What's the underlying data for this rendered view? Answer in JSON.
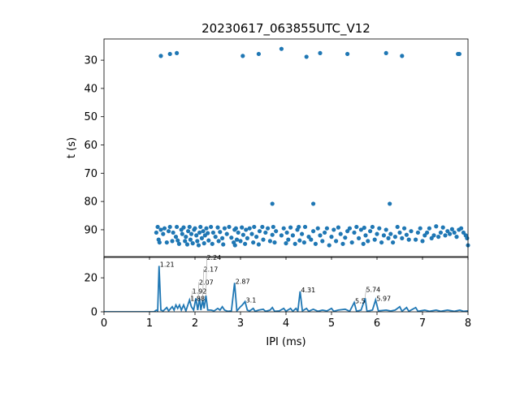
{
  "chart_data": [
    {
      "type": "scatter",
      "title": "20230617_063855UTC_V12",
      "xlabel": "",
      "ylabel": "t (s)",
      "xlim": [
        0,
        8
      ],
      "ylim": [
        99.5,
        22.5
      ],
      "y_inverted": true,
      "yticks": [
        30,
        40,
        50,
        60,
        70,
        80,
        90
      ],
      "color": "#1f77b4",
      "points": [
        [
          1.25,
          28.5
        ],
        [
          1.45,
          27.8
        ],
        [
          1.6,
          27.5
        ],
        [
          3.05,
          28.5
        ],
        [
          3.4,
          27.8
        ],
        [
          3.9,
          26
        ],
        [
          4.45,
          28.8
        ],
        [
          4.75,
          27.5
        ],
        [
          5.35,
          27.8
        ],
        [
          6.2,
          27.5
        ],
        [
          6.55,
          28.5
        ],
        [
          7.78,
          27.8
        ],
        [
          7.81,
          27.8
        ],
        [
          3.7,
          80.8
        ],
        [
          4.6,
          80.8
        ],
        [
          6.28,
          80.8
        ],
        [
          1.15,
          91
        ],
        [
          1.18,
          89
        ],
        [
          1.2,
          93.5
        ],
        [
          1.22,
          94.5
        ],
        [
          1.25,
          90
        ],
        [
          1.3,
          91.5
        ],
        [
          1.33,
          89.5
        ],
        [
          1.38,
          94.5
        ],
        [
          1.42,
          90.5
        ],
        [
          1.45,
          89
        ],
        [
          1.5,
          94
        ],
        [
          1.52,
          91
        ],
        [
          1.58,
          92.5
        ],
        [
          1.6,
          89
        ],
        [
          1.62,
          93.8
        ],
        [
          1.65,
          95
        ],
        [
          1.7,
          90
        ],
        [
          1.72,
          91.5
        ],
        [
          1.75,
          89.2
        ],
        [
          1.78,
          94
        ],
        [
          1.8,
          92.5
        ],
        [
          1.83,
          95.2
        ],
        [
          1.85,
          90.5
        ],
        [
          1.88,
          89
        ],
        [
          1.9,
          93.5
        ],
        [
          1.92,
          91.5
        ],
        [
          1.95,
          94.8
        ],
        [
          1.98,
          90
        ],
        [
          2.0,
          89.5
        ],
        [
          2.03,
          92
        ],
        [
          2.05,
          94
        ],
        [
          2.08,
          95.5
        ],
        [
          2.1,
          91
        ],
        [
          2.12,
          89
        ],
        [
          2.15,
          93
        ],
        [
          2.18,
          90.5
        ],
        [
          2.2,
          94.8
        ],
        [
          2.22,
          92
        ],
        [
          2.25,
          89.5
        ],
        [
          2.28,
          91.2
        ],
        [
          2.3,
          93.8
        ],
        [
          2.35,
          89
        ],
        [
          2.38,
          95
        ],
        [
          2.4,
          91
        ],
        [
          2.45,
          92.5
        ],
        [
          2.5,
          89.2
        ],
        [
          2.52,
          94
        ],
        [
          2.55,
          90.8
        ],
        [
          2.6,
          93
        ],
        [
          2.62,
          95.2
        ],
        [
          2.65,
          89.5
        ],
        [
          2.7,
          91.5
        ],
        [
          2.75,
          89
        ],
        [
          2.8,
          92.8
        ],
        [
          2.85,
          94.5
        ],
        [
          2.87,
          90
        ],
        [
          2.88,
          95.5
        ],
        [
          2.9,
          89.5
        ],
        [
          2.92,
          93.5
        ],
        [
          2.95,
          91
        ],
        [
          3.0,
          94
        ],
        [
          3.03,
          89.2
        ],
        [
          3.06,
          91.8
        ],
        [
          3.1,
          95
        ],
        [
          3.12,
          90
        ],
        [
          3.15,
          93
        ],
        [
          3.2,
          89.5
        ],
        [
          3.25,
          91.5
        ],
        [
          3.28,
          94.5
        ],
        [
          3.3,
          89
        ],
        [
          3.35,
          92.5
        ],
        [
          3.4,
          95.2
        ],
        [
          3.42,
          90.5
        ],
        [
          3.48,
          89
        ],
        [
          3.5,
          93.5
        ],
        [
          3.55,
          91
        ],
        [
          3.6,
          89.5
        ],
        [
          3.65,
          94
        ],
        [
          3.7,
          91.8
        ],
        [
          3.72,
          89
        ],
        [
          3.75,
          94.5
        ],
        [
          3.78,
          90.5
        ],
        [
          3.9,
          92
        ],
        [
          3.95,
          89.5
        ],
        [
          4.0,
          94.8
        ],
        [
          4.02,
          91
        ],
        [
          4.05,
          93.5
        ],
        [
          4.1,
          89.2
        ],
        [
          4.15,
          92
        ],
        [
          4.2,
          95
        ],
        [
          4.25,
          90
        ],
        [
          4.28,
          89
        ],
        [
          4.3,
          93.8
        ],
        [
          4.35,
          91.5
        ],
        [
          4.4,
          94.5
        ],
        [
          4.42,
          89
        ],
        [
          4.5,
          92.5
        ],
        [
          4.55,
          93.5
        ],
        [
          4.6,
          90.5
        ],
        [
          4.65,
          95
        ],
        [
          4.7,
          89.5
        ],
        [
          4.75,
          92
        ],
        [
          4.8,
          94
        ],
        [
          4.85,
          91
        ],
        [
          4.9,
          89.5
        ],
        [
          4.95,
          95.5
        ],
        [
          5.0,
          92.5
        ],
        [
          5.05,
          90
        ],
        [
          5.1,
          94
        ],
        [
          5.15,
          89.2
        ],
        [
          5.2,
          91.5
        ],
        [
          5.25,
          95
        ],
        [
          5.3,
          92.8
        ],
        [
          5.35,
          90.5
        ],
        [
          5.4,
          89.5
        ],
        [
          5.45,
          94.5
        ],
        [
          5.5,
          91
        ],
        [
          5.55,
          89
        ],
        [
          5.6,
          93
        ],
        [
          5.65,
          90
        ],
        [
          5.7,
          95
        ],
        [
          5.72,
          89.3
        ],
        [
          5.75,
          92
        ],
        [
          5.8,
          94
        ],
        [
          5.85,
          90.5
        ],
        [
          5.9,
          89
        ],
        [
          5.95,
          93.5
        ],
        [
          6.0,
          91.5
        ],
        [
          6.05,
          89.5
        ],
        [
          6.1,
          94.5
        ],
        [
          6.15,
          92
        ],
        [
          6.2,
          90
        ],
        [
          6.25,
          93
        ],
        [
          6.3,
          91.5
        ],
        [
          6.35,
          94.5
        ],
        [
          6.4,
          92.5
        ],
        [
          6.45,
          89
        ],
        [
          6.5,
          91
        ],
        [
          6.55,
          93
        ],
        [
          6.6,
          89.5
        ],
        [
          6.65,
          91.8
        ],
        [
          6.7,
          93.5
        ],
        [
          6.75,
          90.5
        ],
        [
          6.85,
          93.5
        ],
        [
          6.9,
          91
        ],
        [
          6.95,
          89.5
        ],
        [
          7.0,
          94
        ],
        [
          7.05,
          92
        ],
        [
          7.1,
          91
        ],
        [
          7.15,
          89.5
        ],
        [
          7.2,
          93
        ],
        [
          7.25,
          92
        ],
        [
          7.3,
          88.8
        ],
        [
          7.35,
          92.5
        ],
        [
          7.4,
          91
        ],
        [
          7.45,
          89.2
        ],
        [
          7.5,
          92
        ],
        [
          7.55,
          90.5
        ],
        [
          7.6,
          91.5
        ],
        [
          7.65,
          89.8
        ],
        [
          7.7,
          91
        ],
        [
          7.75,
          92.5
        ],
        [
          7.8,
          90
        ],
        [
          7.85,
          89.5
        ],
        [
          7.9,
          91
        ],
        [
          7.95,
          92
        ],
        [
          7.98,
          93
        ],
        [
          8.0,
          95.5
        ]
      ]
    },
    {
      "type": "line",
      "xlabel": "IPI (ms)",
      "ylabel": "",
      "xlim": [
        0,
        8
      ],
      "ylim": [
        0,
        32
      ],
      "xticks": [
        0,
        1,
        2,
        3,
        4,
        5,
        6,
        7,
        8
      ],
      "yticks": [
        0,
        20
      ],
      "color": "#1f77b4",
      "points": [
        [
          0,
          0
        ],
        [
          1.1,
          0
        ],
        [
          1.15,
          1
        ],
        [
          1.18,
          0.5
        ],
        [
          1.21,
          27
        ],
        [
          1.25,
          1
        ],
        [
          1.3,
          0.5
        ],
        [
          1.38,
          2.5
        ],
        [
          1.42,
          0.5
        ],
        [
          1.5,
          3
        ],
        [
          1.54,
          1
        ],
        [
          1.58,
          4
        ],
        [
          1.62,
          2
        ],
        [
          1.66,
          4
        ],
        [
          1.7,
          1
        ],
        [
          1.75,
          4
        ],
        [
          1.8,
          0.5
        ],
        [
          1.88,
          7
        ],
        [
          1.92,
          3
        ],
        [
          1.97,
          1
        ],
        [
          2.02,
          8
        ],
        [
          2.06,
          1
        ],
        [
          2.1,
          8
        ],
        [
          2.13,
          1
        ],
        [
          2.17,
          7
        ],
        [
          2.2,
          2
        ],
        [
          2.24,
          9.5
        ],
        [
          2.28,
          1
        ],
        [
          2.35,
          1
        ],
        [
          2.42,
          0.5
        ],
        [
          2.5,
          2
        ],
        [
          2.55,
          1
        ],
        [
          2.6,
          3
        ],
        [
          2.65,
          1
        ],
        [
          2.72,
          0.3
        ],
        [
          2.8,
          0.5
        ],
        [
          2.87,
          17
        ],
        [
          2.92,
          0.5
        ],
        [
          3.0,
          3
        ],
        [
          3.04,
          4
        ],
        [
          3.1,
          6
        ],
        [
          3.15,
          1
        ],
        [
          3.2,
          0.5
        ],
        [
          3.28,
          2
        ],
        [
          3.32,
          0.3
        ],
        [
          3.4,
          1
        ],
        [
          3.5,
          1.5
        ],
        [
          3.55,
          0.3
        ],
        [
          3.65,
          1
        ],
        [
          3.7,
          2.5
        ],
        [
          3.75,
          0.3
        ],
        [
          3.85,
          0.5
        ],
        [
          3.95,
          2
        ],
        [
          4.0,
          0.3
        ],
        [
          4.1,
          2
        ],
        [
          4.15,
          0.3
        ],
        [
          4.22,
          2
        ],
        [
          4.26,
          0.3
        ],
        [
          4.31,
          12
        ],
        [
          4.36,
          0.5
        ],
        [
          4.45,
          2
        ],
        [
          4.5,
          0.3
        ],
        [
          4.6,
          1.5
        ],
        [
          4.7,
          0.3
        ],
        [
          4.8,
          1
        ],
        [
          4.9,
          0.5
        ],
        [
          5.0,
          2
        ],
        [
          5.05,
          0.3
        ],
        [
          5.15,
          1
        ],
        [
          5.3,
          1.5
        ],
        [
          5.4,
          0.3
        ],
        [
          5.5,
          5.5
        ],
        [
          5.55,
          0.3
        ],
        [
          5.65,
          1
        ],
        [
          5.74,
          8
        ],
        [
          5.78,
          0.3
        ],
        [
          5.9,
          1
        ],
        [
          5.97,
          7
        ],
        [
          6.03,
          0.5
        ],
        [
          6.2,
          1
        ],
        [
          6.3,
          0.5
        ],
        [
          6.4,
          1
        ],
        [
          6.5,
          3
        ],
        [
          6.55,
          0.3
        ],
        [
          6.65,
          2.5
        ],
        [
          6.7,
          0.3
        ],
        [
          6.85,
          2.5
        ],
        [
          6.9,
          0.3
        ],
        [
          7.05,
          1
        ],
        [
          7.15,
          0.3
        ],
        [
          7.3,
          1
        ],
        [
          7.4,
          0.3
        ],
        [
          7.55,
          1
        ],
        [
          7.7,
          0.3
        ],
        [
          7.82,
          1
        ],
        [
          7.9,
          0.3
        ],
        [
          8,
          0.5
        ]
      ],
      "annotations": [
        {
          "x": 1.21,
          "y": 27,
          "text": "1.21"
        },
        {
          "x": 1.88,
          "y": 7,
          "text": "1.88"
        },
        {
          "x": 1.92,
          "y": 7,
          "text": "1.92"
        },
        {
          "x": 2.07,
          "y": 8,
          "text": "2.07"
        },
        {
          "x": 2.17,
          "y": 7,
          "text": "2.17"
        },
        {
          "x": 2.24,
          "y": 9.5,
          "text": "2.24"
        },
        {
          "x": 2.87,
          "y": 17,
          "text": "2.87"
        },
        {
          "x": 3.1,
          "y": 6,
          "text": "3.1"
        },
        {
          "x": 4.31,
          "y": 12,
          "text": "4.31"
        },
        {
          "x": 5.5,
          "y": 5.5,
          "text": "5.5"
        },
        {
          "x": 5.74,
          "y": 8,
          "text": "5.74"
        },
        {
          "x": 5.97,
          "y": 7,
          "text": "5.97"
        }
      ]
    }
  ]
}
